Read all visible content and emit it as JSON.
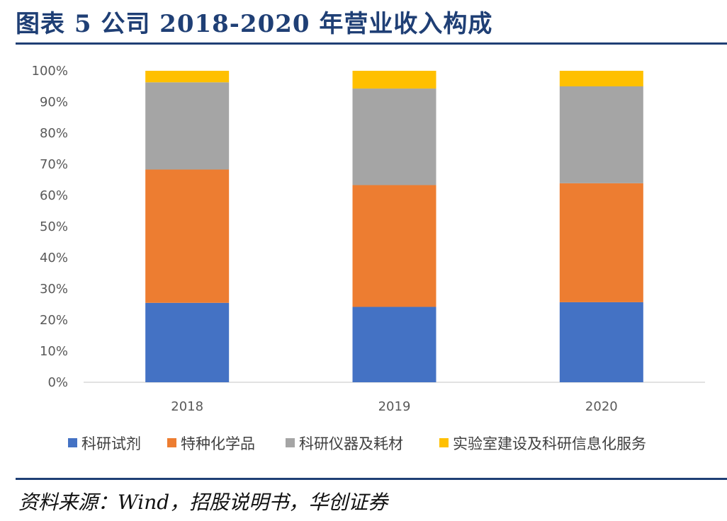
{
  "header": {
    "title": "图表 5   公司 2018-2020 年营业收入构成"
  },
  "footer": {
    "source": "资料来源：Wind，招股说明书，华创证券"
  },
  "colors": {
    "科研试剂": "#4472c4",
    "特种化学品": "#ed7d31",
    "科研仪器及耗材": "#a5a5a5",
    "实验室建设及科研信息化服务": "#ffc000"
  },
  "chart_data": {
    "type": "bar",
    "stacked": true,
    "categories": [
      "2018",
      "2019",
      "2020"
    ],
    "series": [
      {
        "name": "科研试剂",
        "values": [
          25.5,
          24.2,
          25.7
        ]
      },
      {
        "name": "特种化学品",
        "values": [
          42.8,
          39.1,
          38.2
        ]
      },
      {
        "name": "科研仪器及耗材",
        "values": [
          28.0,
          31.0,
          31.1
        ]
      },
      {
        "name": "实验室建设及科研信息化服务",
        "values": [
          3.7,
          5.7,
          5.0
        ]
      }
    ],
    "y_ticks": [
      "0%",
      "10%",
      "20%",
      "30%",
      "40%",
      "50%",
      "60%",
      "70%",
      "80%",
      "90%",
      "100%"
    ],
    "ylim": [
      0,
      100
    ],
    "grid": false,
    "legend_position": "bottom"
  }
}
